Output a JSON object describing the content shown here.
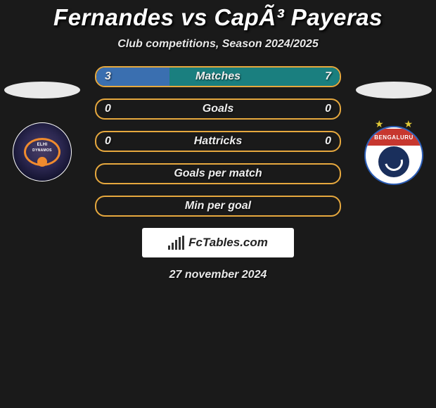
{
  "title": "Fernandes vs CapÃ³ Payeras",
  "subtitle": "Club competitions, Season 2024/2025",
  "date": "27 november 2024",
  "watermark_text": "FcTables.com",
  "left_player": {
    "club_text_line1": "ELHI",
    "club_text_line2": "DYNAMOS"
  },
  "right_player": {
    "club_text": "BENGALURU"
  },
  "style": {
    "bg": "#1a1a1a",
    "title_color": "#ffffff",
    "text_color": "#e8e8e8",
    "bar_border": "#e6a83e",
    "fill_blue": "#3a6fb0",
    "fill_teal": "#1a7f7f",
    "bar_bg": "#1a1a1a"
  },
  "bars": [
    {
      "label": "Matches",
      "left": "3",
      "right": "7",
      "left_pct": 30,
      "right_pct": 70,
      "left_color": "#3a6fb0",
      "right_color": "#1a7f7f"
    },
    {
      "label": "Goals",
      "left": "0",
      "right": "0",
      "left_pct": 0,
      "right_pct": 0,
      "left_color": "#3a6fb0",
      "right_color": "#1a7f7f"
    },
    {
      "label": "Hattricks",
      "left": "0",
      "right": "0",
      "left_pct": 0,
      "right_pct": 0,
      "left_color": "#3a6fb0",
      "right_color": "#1a7f7f"
    },
    {
      "label": "Goals per match",
      "left": "",
      "right": "",
      "left_pct": 0,
      "right_pct": 0,
      "left_color": "#3a6fb0",
      "right_color": "#1a7f7f"
    },
    {
      "label": "Min per goal",
      "left": "",
      "right": "",
      "left_pct": 0,
      "right_pct": 0,
      "left_color": "#3a6fb0",
      "right_color": "#1a7f7f"
    }
  ]
}
